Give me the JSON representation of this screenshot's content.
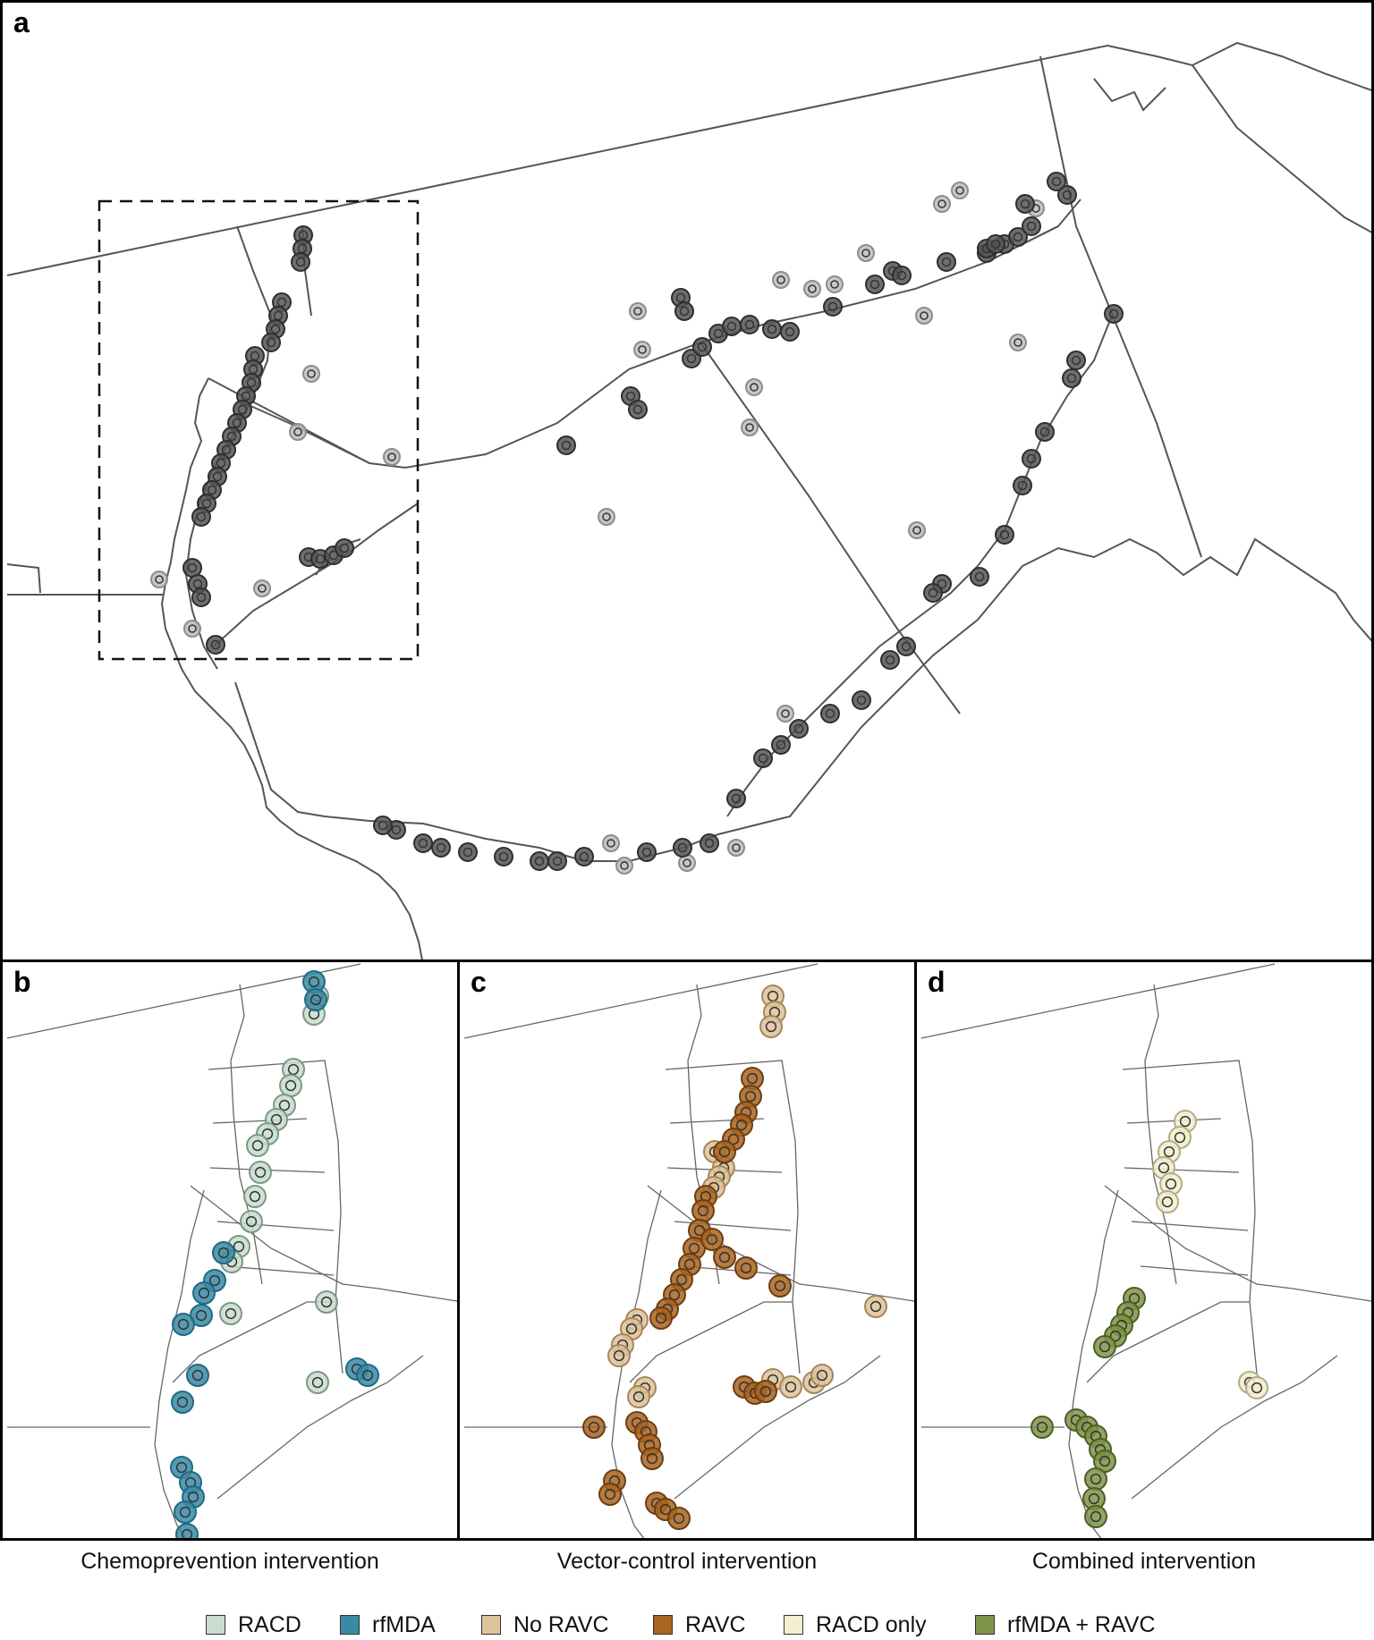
{
  "panels": {
    "a": {
      "label": "a"
    },
    "b": {
      "label": "b",
      "caption": "Chemoprevention intervention"
    },
    "c": {
      "label": "c",
      "caption": "Vector-control intervention"
    },
    "d": {
      "label": "d",
      "caption": "Combined intervention"
    }
  },
  "legend": [
    {
      "label": "RACD",
      "color": "#c9dccf"
    },
    {
      "label": "rfMDA",
      "color": "#3a8aa6"
    },
    {
      "label": "No RAVC",
      "color": "#ddc39a"
    },
    {
      "label": "RAVC",
      "color": "#a9641f"
    },
    {
      "label": "RACD only",
      "color": "#f3efd0"
    },
    {
      "label": "rfMDA + RAVC",
      "color": "#7f9447"
    }
  ],
  "colors": {
    "clusters_overview": "#2e2e2e",
    "clusters_overview_faint": "#8d8d8d",
    "boundary": "#333333"
  }
}
